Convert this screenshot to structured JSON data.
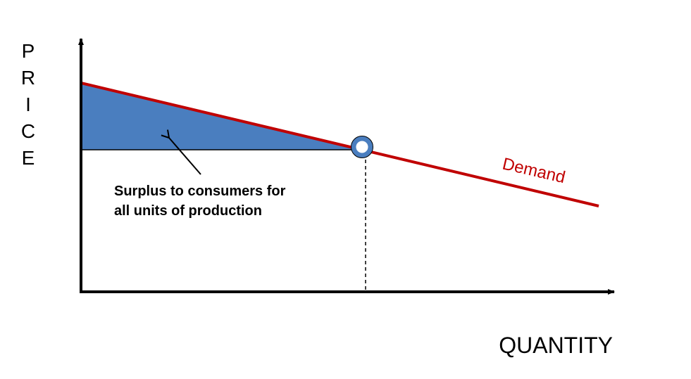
{
  "y_axis": {
    "label_letters": [
      "P",
      "R",
      "I",
      "C",
      "E"
    ]
  },
  "x_axis": {
    "label": "QUANTITY"
  },
  "curve": {
    "label": "Demand"
  },
  "annotation": {
    "lines": [
      "Surplus to consumers for",
      "all units of production"
    ]
  }
}
